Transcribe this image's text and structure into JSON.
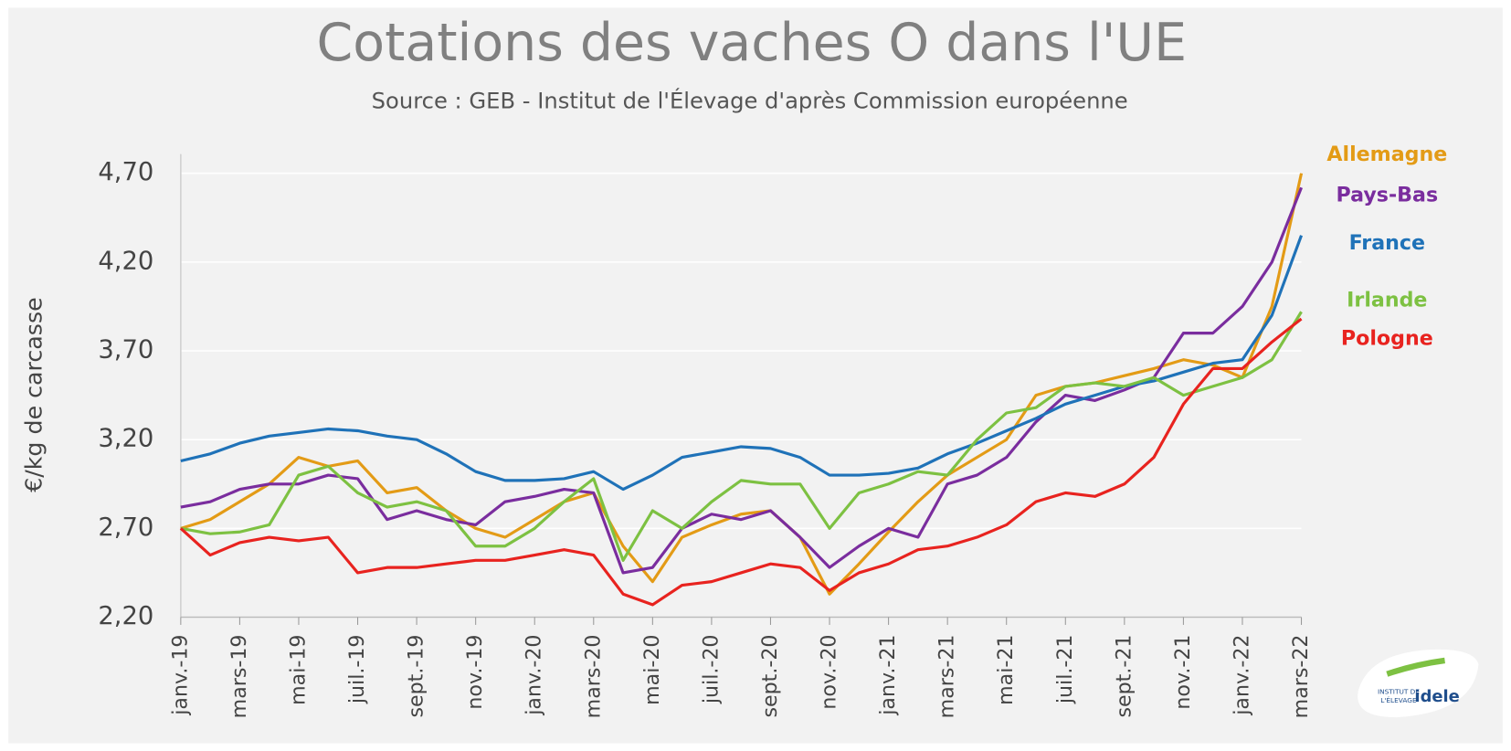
{
  "chart_data": {
    "type": "line",
    "title": "Cotations des vaches O dans l'UE",
    "subtitle": "Source : GEB - Institut de l'Élevage d'après Commission européenne",
    "y_label": "€/kg de carcasse",
    "logo": {
      "line1": "INSTITUT DE",
      "line2": "L'ÉLEVAGE",
      "name": "idele"
    },
    "categories": [
      "janv.-19",
      null,
      "mars-19",
      null,
      "mai-19",
      null,
      "juil.-19",
      null,
      "sept.-19",
      null,
      "nov.-19",
      null,
      "janv.-20",
      null,
      "mars-20",
      null,
      "mai-20",
      null,
      "juil.-20",
      null,
      "sept.-20",
      null,
      "nov.-20",
      null,
      "janv.-21",
      null,
      "mars-21",
      null,
      "mai-21",
      null,
      "juil.-21",
      null,
      "sept.-21",
      null,
      "nov.-21",
      null,
      "janv.-22",
      null,
      "mars-22"
    ],
    "ylim": [
      2.2,
      4.7
    ],
    "yticks": [
      {
        "value": 2.2,
        "label": "2,20"
      },
      {
        "value": 2.7,
        "label": "2,70"
      },
      {
        "value": 3.2,
        "label": "3,20"
      },
      {
        "value": 3.7,
        "label": "3,70"
      },
      {
        "value": 4.2,
        "label": "4,20"
      },
      {
        "value": 4.7,
        "label": "4,70"
      }
    ],
    "grid": true,
    "series": [
      {
        "name": "Allemagne",
        "color": "#e39b16",
        "values": [
          2.7,
          2.75,
          2.85,
          2.95,
          3.1,
          3.05,
          3.08,
          2.9,
          2.93,
          2.8,
          2.7,
          2.65,
          2.75,
          2.85,
          2.9,
          2.6,
          2.4,
          2.65,
          2.72,
          2.78,
          2.8,
          2.65,
          2.33,
          2.5,
          2.68,
          2.85,
          3.0,
          3.1,
          3.2,
          3.45,
          3.5,
          3.52,
          3.56,
          3.6,
          3.65,
          3.62,
          3.55,
          3.95,
          4.7
        ]
      },
      {
        "name": "Pays-Bas",
        "color": "#7a2d9e",
        "values": [
          2.82,
          2.85,
          2.92,
          2.95,
          2.95,
          3.0,
          2.98,
          2.75,
          2.8,
          2.75,
          2.72,
          2.85,
          2.88,
          2.92,
          2.9,
          2.45,
          2.48,
          2.7,
          2.78,
          2.75,
          2.8,
          2.65,
          2.48,
          2.6,
          2.7,
          2.65,
          2.95,
          3.0,
          3.1,
          3.3,
          3.45,
          3.42,
          3.48,
          3.55,
          3.8,
          3.8,
          3.95,
          4.2,
          4.62
        ]
      },
      {
        "name": "France",
        "color": "#1f72b8",
        "values": [
          3.08,
          3.12,
          3.18,
          3.22,
          3.24,
          3.26,
          3.25,
          3.22,
          3.2,
          3.12,
          3.02,
          2.97,
          2.97,
          2.98,
          3.02,
          2.92,
          3.0,
          3.1,
          3.13,
          3.16,
          3.15,
          3.1,
          3.0,
          3.0,
          3.01,
          3.04,
          3.12,
          3.18,
          3.25,
          3.32,
          3.4,
          3.45,
          3.5,
          3.53,
          3.58,
          3.63,
          3.65,
          3.9,
          4.35
        ]
      },
      {
        "name": "Irlande",
        "color": "#7dc142",
        "values": [
          2.7,
          2.67,
          2.68,
          2.72,
          3.0,
          3.05,
          2.9,
          2.82,
          2.85,
          2.8,
          2.6,
          2.6,
          2.7,
          2.85,
          2.98,
          2.52,
          2.8,
          2.7,
          2.85,
          2.97,
          2.95,
          2.95,
          2.7,
          2.9,
          2.95,
          3.02,
          3.0,
          3.2,
          3.35,
          3.38,
          3.5,
          3.52,
          3.5,
          3.55,
          3.45,
          3.5,
          3.55,
          3.65,
          3.92
        ]
      },
      {
        "name": "Pologne",
        "color": "#e8231f",
        "values": [
          2.7,
          2.55,
          2.62,
          2.65,
          2.63,
          2.65,
          2.45,
          2.48,
          2.48,
          2.5,
          2.52,
          2.52,
          2.55,
          2.58,
          2.55,
          2.33,
          2.27,
          2.38,
          2.4,
          2.45,
          2.5,
          2.48,
          2.35,
          2.45,
          2.5,
          2.58,
          2.6,
          2.65,
          2.72,
          2.85,
          2.9,
          2.88,
          2.95,
          3.1,
          3.4,
          3.6,
          3.6,
          3.75,
          3.88
        ]
      }
    ]
  }
}
